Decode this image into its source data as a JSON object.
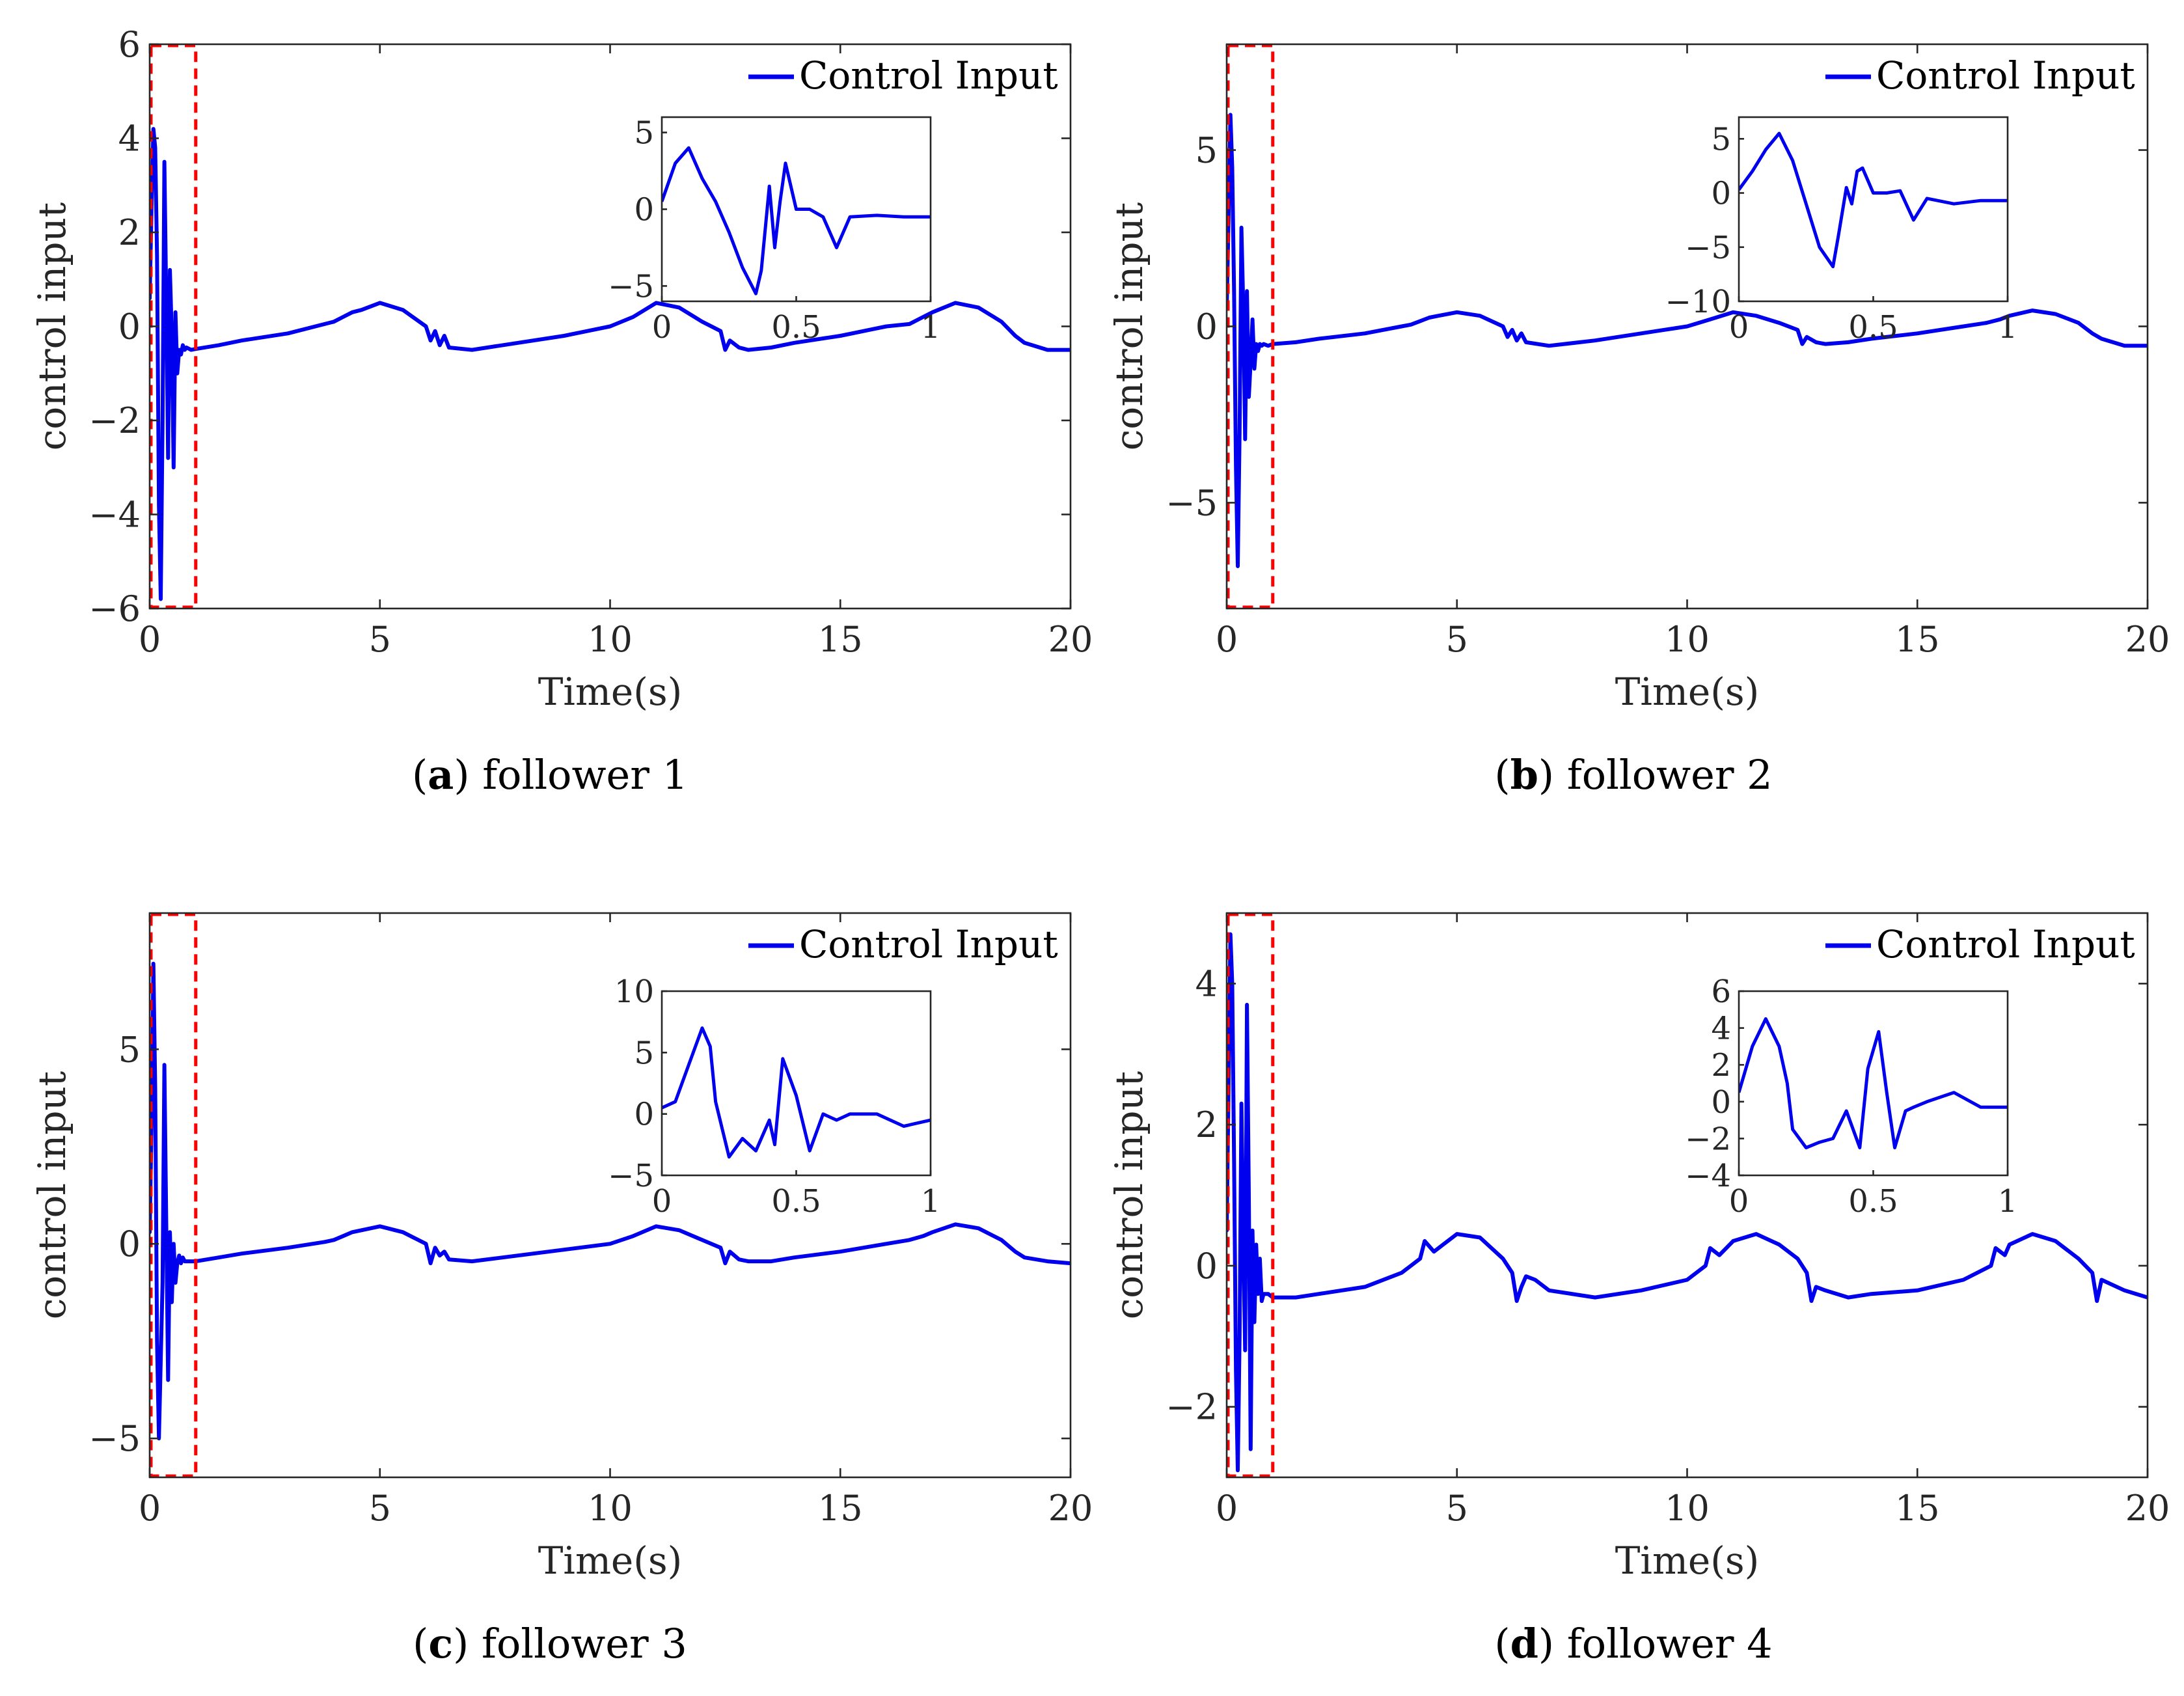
{
  "colors": {
    "series": "#0000ee",
    "zoom_box": "#ff0000",
    "axes": "#262626"
  },
  "chart_data": [
    {
      "type": "line",
      "caption_letter": "a",
      "caption_text": "follower 1",
      "xlabel": "Time(s)",
      "ylabel": "control input",
      "xlim": [
        0,
        20
      ],
      "ylim": [
        -6,
        6
      ],
      "xticks": [
        0,
        5,
        10,
        15,
        20
      ],
      "yticks": [
        -6,
        -4,
        -2,
        0,
        2,
        4,
        6
      ],
      "xtick_labels": [
        "0",
        "5",
        "10",
        "15",
        "20"
      ],
      "ytick_labels": [
        "−6",
        "−4",
        "−2",
        "0",
        "2",
        "4",
        "6"
      ],
      "legend": "Control Input",
      "legend_position": "top-right",
      "zoom_region": {
        "x": [
          0,
          1
        ],
        "y": [
          -6,
          6
        ]
      },
      "series": [
        {
          "name": "Control Input",
          "x": [
            0,
            0.04,
            0.08,
            0.12,
            0.16,
            0.2,
            0.24,
            0.28,
            0.32,
            0.36,
            0.4,
            0.44,
            0.48,
            0.52,
            0.56,
            0.6,
            0.64,
            0.68,
            0.72,
            0.76,
            0.8,
            0.9,
            1,
            1.5,
            2,
            3,
            3.8,
            4,
            4.2,
            4.4,
            4.6,
            5,
            5.5,
            6,
            6.1,
            6.2,
            6.3,
            6.4,
            6.5,
            7,
            8,
            9,
            10,
            10.5,
            11,
            11.5,
            12,
            12.4,
            12.5,
            12.6,
            12.8,
            13,
            13.5,
            14,
            15,
            16,
            16.5,
            16.8,
            17,
            17.5,
            18,
            18.5,
            18.8,
            19,
            19.5,
            20
          ],
          "values": [
            0.6,
            2.5,
            4.2,
            3.8,
            1.5,
            -3.8,
            -5.8,
            -2,
            3.5,
            0.5,
            -2.8,
            1.2,
            -0.2,
            -3,
            0.3,
            -1,
            -0.5,
            -0.6,
            -0.4,
            -0.5,
            -0.45,
            -0.5,
            -0.48,
            -0.4,
            -0.3,
            -0.15,
            0.05,
            0.1,
            0.2,
            0.3,
            0.35,
            0.5,
            0.35,
            0,
            -0.3,
            -0.1,
            -0.4,
            -0.2,
            -0.45,
            -0.5,
            -0.35,
            -0.2,
            0,
            0.2,
            0.5,
            0.4,
            0.1,
            -0.1,
            -0.5,
            -0.3,
            -0.45,
            -0.5,
            -0.45,
            -0.35,
            -0.2,
            0,
            0.05,
            0.2,
            0.3,
            0.5,
            0.4,
            0.1,
            -0.2,
            -0.35,
            -0.5,
            -0.5
          ]
        }
      ],
      "inset": {
        "xlim": [
          0,
          1
        ],
        "ylim": [
          -6,
          6
        ],
        "xticks": [
          0,
          0.5,
          1
        ],
        "yticks": [
          -5,
          0,
          5
        ],
        "xtick_labels": [
          "0",
          "0.5",
          "1"
        ],
        "ytick_labels": [
          "−5",
          "0",
          "5"
        ],
        "x": [
          0,
          0.05,
          0.1,
          0.15,
          0.2,
          0.25,
          0.3,
          0.35,
          0.37,
          0.4,
          0.42,
          0.44,
          0.46,
          0.5,
          0.55,
          0.6,
          0.65,
          0.7,
          0.8,
          0.9,
          1
        ],
        "values": [
          0.5,
          3,
          4,
          2,
          0.5,
          -1.5,
          -3.8,
          -5.5,
          -4,
          1.5,
          -2.5,
          0.5,
          3,
          0,
          0,
          -0.5,
          -2.5,
          -0.5,
          -0.4,
          -0.5,
          -0.5
        ]
      }
    },
    {
      "type": "line",
      "caption_letter": "b",
      "caption_text": "follower 2",
      "xlabel": "Time(s)",
      "ylabel": "control input",
      "xlim": [
        0,
        20
      ],
      "ylim": [
        -8,
        8
      ],
      "xticks": [
        0,
        5,
        10,
        15,
        20
      ],
      "yticks": [
        -5,
        0,
        5
      ],
      "xtick_labels": [
        "0",
        "5",
        "10",
        "15",
        "20"
      ],
      "ytick_labels": [
        "−5",
        "0",
        "5"
      ],
      "legend": "Control Input",
      "legend_position": "top-right",
      "zoom_region": {
        "x": [
          0,
          1
        ],
        "y": [
          -8,
          8
        ]
      },
      "series": [
        {
          "name": "Control Input",
          "x": [
            0,
            0.04,
            0.08,
            0.12,
            0.16,
            0.2,
            0.24,
            0.28,
            0.32,
            0.36,
            0.4,
            0.44,
            0.48,
            0.52,
            0.56,
            0.6,
            0.64,
            0.68,
            0.72,
            0.76,
            0.8,
            0.9,
            1,
            1.5,
            2,
            3,
            3.8,
            4,
            4.2,
            4.4,
            4.6,
            5,
            5.5,
            6,
            6.1,
            6.2,
            6.3,
            6.4,
            6.5,
            7,
            8,
            9,
            10,
            10.5,
            11,
            11.5,
            12,
            12.4,
            12.5,
            12.6,
            12.8,
            13,
            13.5,
            14,
            15,
            16,
            16.5,
            16.8,
            17,
            17.5,
            18,
            18.5,
            18.8,
            19,
            19.5,
            20
          ],
          "values": [
            0.5,
            3,
            6,
            4.5,
            1,
            -4,
            -6.8,
            -3,
            2.8,
            0.5,
            -3.2,
            1,
            -2,
            -1,
            0.2,
            -1.2,
            -0.5,
            -0.7,
            -0.5,
            -0.55,
            -0.5,
            -0.55,
            -0.5,
            -0.45,
            -0.35,
            -0.2,
            0,
            0.05,
            0.15,
            0.25,
            0.3,
            0.4,
            0.3,
            0,
            -0.3,
            -0.1,
            -0.4,
            -0.2,
            -0.45,
            -0.55,
            -0.4,
            -0.2,
            0,
            0.2,
            0.4,
            0.3,
            0.1,
            -0.1,
            -0.5,
            -0.3,
            -0.45,
            -0.5,
            -0.45,
            -0.35,
            -0.2,
            0,
            0.1,
            0.2,
            0.3,
            0.45,
            0.35,
            0.1,
            -0.2,
            -0.35,
            -0.55,
            -0.55
          ]
        }
      ],
      "inset": {
        "xlim": [
          0,
          1
        ],
        "ylim": [
          -10,
          7
        ],
        "xticks": [
          0,
          0.5,
          1
        ],
        "yticks": [
          -10,
          -5,
          0,
          5
        ],
        "xtick_labels": [
          "0",
          "0.5",
          "1"
        ],
        "ytick_labels": [
          "−10",
          "−5",
          "0",
          "5"
        ],
        "x": [
          0,
          0.05,
          0.1,
          0.15,
          0.2,
          0.25,
          0.3,
          0.35,
          0.37,
          0.4,
          0.42,
          0.44,
          0.46,
          0.5,
          0.55,
          0.6,
          0.65,
          0.7,
          0.8,
          0.9,
          1
        ],
        "values": [
          0.3,
          2,
          4,
          5.5,
          3,
          -1,
          -5,
          -6.8,
          -4,
          0.5,
          -1,
          2,
          2.3,
          0,
          0,
          0.2,
          -2.5,
          -0.5,
          -1,
          -0.7,
          -0.7
        ]
      }
    },
    {
      "type": "line",
      "caption_letter": "c",
      "caption_text": "follower 3",
      "xlabel": "Time(s)",
      "ylabel": "control input",
      "xlim": [
        0,
        20
      ],
      "ylim": [
        -6,
        8.5
      ],
      "xticks": [
        0,
        5,
        10,
        15,
        20
      ],
      "yticks": [
        -5,
        0,
        5
      ],
      "xtick_labels": [
        "0",
        "5",
        "10",
        "15",
        "20"
      ],
      "ytick_labels": [
        "−5",
        "0",
        "5"
      ],
      "legend": "Control Input",
      "legend_position": "top-right",
      "zoom_region": {
        "x": [
          0,
          1
        ],
        "y": [
          -6,
          8.5
        ]
      },
      "series": [
        {
          "name": "Control Input",
          "x": [
            0,
            0.04,
            0.08,
            0.12,
            0.16,
            0.2,
            0.24,
            0.28,
            0.32,
            0.36,
            0.4,
            0.44,
            0.48,
            0.52,
            0.56,
            0.6,
            0.64,
            0.68,
            0.72,
            0.76,
            0.8,
            0.9,
            1,
            1.5,
            2,
            3,
            3.8,
            4,
            4.2,
            4.4,
            4.6,
            5,
            5.5,
            6,
            6.1,
            6.2,
            6.3,
            6.4,
            6.5,
            7,
            8,
            9,
            10,
            10.5,
            11,
            11.5,
            12,
            12.4,
            12.5,
            12.6,
            12.8,
            13,
            13.5,
            14,
            15,
            16,
            16.5,
            16.8,
            17,
            17.5,
            18,
            18.5,
            18.8,
            19,
            19.5,
            20
          ],
          "values": [
            0.3,
            3,
            7.2,
            4,
            -2.5,
            -5,
            -3,
            -1,
            4.6,
            0.5,
            -3.5,
            0.3,
            -1.5,
            0,
            -1,
            -0.5,
            -0.3,
            -0.5,
            -0.35,
            -0.45,
            -0.45,
            -0.45,
            -0.45,
            -0.35,
            -0.25,
            -0.1,
            0.05,
            0.1,
            0.2,
            0.3,
            0.35,
            0.45,
            0.3,
            0,
            -0.5,
            -0.1,
            -0.3,
            -0.2,
            -0.4,
            -0.45,
            -0.3,
            -0.15,
            0,
            0.2,
            0.45,
            0.35,
            0.1,
            -0.1,
            -0.5,
            -0.2,
            -0.4,
            -0.45,
            -0.45,
            -0.35,
            -0.2,
            0,
            0.1,
            0.2,
            0.3,
            0.5,
            0.4,
            0.1,
            -0.2,
            -0.35,
            -0.45,
            -0.5
          ]
        }
      ],
      "inset": {
        "xlim": [
          0,
          1
        ],
        "ylim": [
          -5,
          10
        ],
        "xticks": [
          0,
          0.5,
          1
        ],
        "yticks": [
          -5,
          0,
          5,
          10
        ],
        "xtick_labels": [
          "0",
          "0.5",
          "1"
        ],
        "ytick_labels": [
          "−5",
          "0",
          "5",
          "10"
        ],
        "x": [
          0,
          0.05,
          0.1,
          0.15,
          0.18,
          0.2,
          0.25,
          0.3,
          0.35,
          0.4,
          0.42,
          0.45,
          0.5,
          0.55,
          0.6,
          0.65,
          0.7,
          0.8,
          0.9,
          1
        ],
        "values": [
          0.5,
          1,
          4,
          7,
          5.5,
          1,
          -3.5,
          -2,
          -3,
          -0.5,
          -2.5,
          4.5,
          1.5,
          -3,
          0,
          -0.5,
          0,
          0,
          -1,
          -0.5
        ]
      }
    },
    {
      "type": "line",
      "caption_letter": "d",
      "caption_text": "follower 4",
      "xlabel": "Time(s)",
      "ylabel": "control input",
      "xlim": [
        0,
        20
      ],
      "ylim": [
        -3,
        5
      ],
      "xticks": [
        0,
        5,
        10,
        15,
        20
      ],
      "yticks": [
        -2,
        0,
        2,
        4
      ],
      "xtick_labels": [
        "0",
        "5",
        "10",
        "15",
        "20"
      ],
      "ytick_labels": [
        "−2",
        "0",
        "2",
        "4"
      ],
      "legend": "Control Input",
      "legend_position": "top-right",
      "zoom_region": {
        "x": [
          0,
          1
        ],
        "y": [
          -3,
          5
        ]
      },
      "series": [
        {
          "name": "Control Input",
          "x": [
            0,
            0.04,
            0.08,
            0.12,
            0.16,
            0.2,
            0.24,
            0.28,
            0.32,
            0.36,
            0.4,
            0.44,
            0.48,
            0.52,
            0.56,
            0.6,
            0.64,
            0.68,
            0.72,
            0.76,
            0.8,
            0.9,
            1,
            1.5,
            2,
            3,
            3.8,
            4.2,
            4.3,
            4.5,
            4.7,
            5,
            5.5,
            6,
            6.2,
            6.3,
            6.4,
            6.5,
            6.7,
            7,
            8,
            9,
            10,
            10.4,
            10.5,
            10.7,
            11,
            11.5,
            12,
            12.4,
            12.6,
            12.7,
            12.8,
            13,
            13.5,
            14,
            15,
            16,
            16.6,
            16.7,
            16.9,
            17,
            17.5,
            18,
            18.5,
            18.8,
            18.9,
            19,
            19.5,
            20
          ],
          "values": [
            0.5,
            2.5,
            4.7,
            4,
            1.5,
            -1.5,
            -2.9,
            -1,
            2.3,
            0.3,
            -1.2,
            3.7,
            1,
            -2.6,
            0.5,
            -0.8,
            0.3,
            -0.4,
            0.1,
            -0.5,
            -0.4,
            -0.4,
            -0.45,
            -0.45,
            -0.4,
            -0.3,
            -0.1,
            0.1,
            0.35,
            0.2,
            0.3,
            0.45,
            0.4,
            0.1,
            -0.1,
            -0.5,
            -0.3,
            -0.15,
            -0.2,
            -0.35,
            -0.45,
            -0.35,
            -0.2,
            0,
            0.25,
            0.15,
            0.35,
            0.45,
            0.3,
            0.1,
            -0.1,
            -0.5,
            -0.3,
            -0.35,
            -0.45,
            -0.4,
            -0.35,
            -0.2,
            0,
            0.25,
            0.15,
            0.3,
            0.45,
            0.35,
            0.1,
            -0.1,
            -0.5,
            -0.2,
            -0.35,
            -0.45
          ]
        }
      ],
      "inset": {
        "xlim": [
          0,
          1
        ],
        "ylim": [
          -4,
          6
        ],
        "xticks": [
          0,
          0.5,
          1
        ],
        "yticks": [
          -4,
          -2,
          0,
          2,
          4,
          6
        ],
        "xtick_labels": [
          "0",
          "0.5",
          "1"
        ],
        "ytick_labels": [
          "−4",
          "−2",
          "0",
          "2",
          "4",
          "6"
        ],
        "x": [
          0,
          0.05,
          0.1,
          0.15,
          0.18,
          0.2,
          0.25,
          0.3,
          0.35,
          0.4,
          0.45,
          0.48,
          0.52,
          0.55,
          0.58,
          0.62,
          0.65,
          0.7,
          0.8,
          0.9,
          1
        ],
        "values": [
          0.5,
          3,
          4.5,
          3,
          1,
          -1.5,
          -2.5,
          -2.2,
          -2,
          -0.5,
          -2.5,
          1.8,
          3.8,
          0.5,
          -2.5,
          -0.5,
          -0.3,
          0,
          0.5,
          -0.3,
          -0.3
        ]
      }
    }
  ]
}
